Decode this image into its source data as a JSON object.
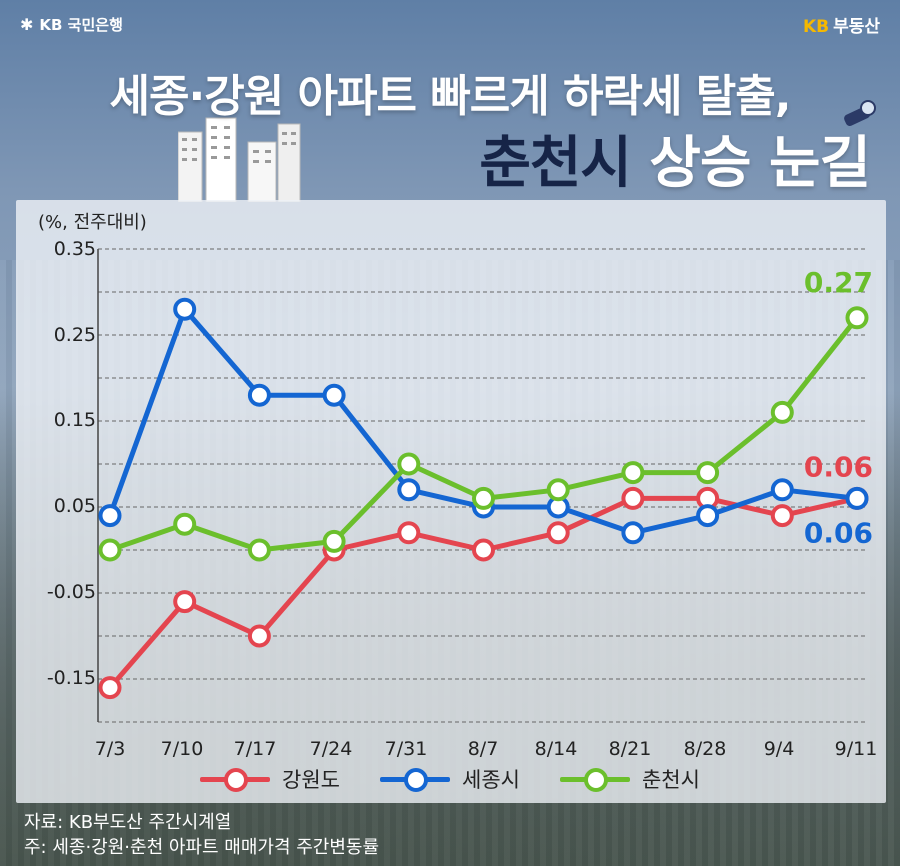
{
  "brand": {
    "left_text": "KB 국민은행",
    "right_kb": "KB",
    "right_text": "부동산"
  },
  "title": {
    "line1": "세종·강원 아파트 빠르게 하락세 탈출,",
    "line2_dark": "춘천시",
    "line2_light": "상승 눈길"
  },
  "colors": {
    "gangwon": "#e4454f",
    "sejong": "#1466d2",
    "chuncheon": "#6bbf2c"
  },
  "icons": [
    "star-logo-icon",
    "buildings-icon",
    "telescope-icon"
  ],
  "chart_data": {
    "type": "line",
    "unit_label": "(%, 전주대비)",
    "categories": [
      "7/3",
      "7/10",
      "7/17",
      "7/24",
      "7/31",
      "8/7",
      "8/14",
      "8/21",
      "8/28",
      "9/4",
      "9/11"
    ],
    "ylim": [
      -0.2,
      0.35
    ],
    "yticks": [
      "0.35",
      "0.25",
      "0.15",
      "0.05",
      "-0.05",
      "-0.15"
    ],
    "ytick_values": [
      0.35,
      0.25,
      0.15,
      0.05,
      -0.05,
      -0.15
    ],
    "grid": true,
    "series": [
      {
        "name": "강원도",
        "values": [
          -0.16,
          -0.06,
          -0.1,
          0.0,
          0.02,
          0.0,
          0.02,
          0.06,
          0.06,
          0.04,
          0.06
        ]
      },
      {
        "name": "세종시",
        "values": [
          0.04,
          0.28,
          0.18,
          0.18,
          0.07,
          0.05,
          0.05,
          0.02,
          0.04,
          0.07,
          0.06
        ]
      },
      {
        "name": "춘천시",
        "values": [
          0.0,
          0.03,
          0.0,
          0.01,
          0.1,
          0.06,
          0.07,
          0.09,
          0.09,
          0.16,
          0.27
        ]
      }
    ],
    "end_labels": {
      "gangwon": "0.06",
      "sejong": "0.06",
      "chuncheon": "0.27"
    },
    "legend_position": "bottom"
  },
  "footer": {
    "source": "자료: KB부도산 주간시계열",
    "note": "주: 세종·강원·춘천 아파트 매매가격 주간변동률"
  }
}
